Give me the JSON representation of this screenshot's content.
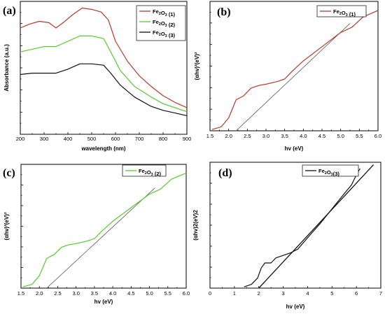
{
  "colors": {
    "red": "#b43a2a",
    "green": "#5ac832",
    "black": "#111111",
    "fit": "#444444"
  },
  "chart_data": [
    {
      "id": "a",
      "type": "line",
      "panel_label": "(a)",
      "xlabel": "wavelength (nm)",
      "ylabel": "Absorbance (a.u.)",
      "xlim": [
        200,
        900
      ],
      "ylim": [
        0,
        1
      ],
      "xticks": [
        200,
        300,
        400,
        500,
        600,
        700,
        800,
        900
      ],
      "yticks_labeled": false,
      "legend_position": "top-right",
      "series": [
        {
          "name": "Fe2O3 (1)",
          "color": "red",
          "points": [
            [
              200,
              0.8
            ],
            [
              240,
              0.83
            ],
            [
              280,
              0.85
            ],
            [
              320,
              0.84
            ],
            [
              350,
              0.8
            ],
            [
              380,
              0.84
            ],
            [
              420,
              0.9
            ],
            [
              460,
              0.95
            ],
            [
              500,
              0.94
            ],
            [
              540,
              0.92
            ],
            [
              570,
              0.86
            ],
            [
              600,
              0.7
            ],
            [
              650,
              0.55
            ],
            [
              700,
              0.44
            ],
            [
              750,
              0.36
            ],
            [
              800,
              0.29
            ],
            [
              850,
              0.24
            ],
            [
              900,
              0.2
            ]
          ]
        },
        {
          "name": "Fe2O3 (2)",
          "color": "green",
          "points": [
            [
              200,
              0.62
            ],
            [
              250,
              0.64
            ],
            [
              300,
              0.66
            ],
            [
              350,
              0.66
            ],
            [
              400,
              0.7
            ],
            [
              450,
              0.74
            ],
            [
              500,
              0.74
            ],
            [
              550,
              0.72
            ],
            [
              580,
              0.62
            ],
            [
              620,
              0.48
            ],
            [
              680,
              0.36
            ],
            [
              750,
              0.28
            ],
            [
              800,
              0.23
            ],
            [
              850,
              0.2
            ],
            [
              900,
              0.17
            ]
          ]
        },
        {
          "name": "Fe2O3 (3)",
          "color": "black",
          "points": [
            [
              200,
              0.45
            ],
            [
              250,
              0.46
            ],
            [
              300,
              0.46
            ],
            [
              350,
              0.46
            ],
            [
              400,
              0.49
            ],
            [
              450,
              0.53
            ],
            [
              500,
              0.53
            ],
            [
              550,
              0.52
            ],
            [
              580,
              0.46
            ],
            [
              620,
              0.37
            ],
            [
              680,
              0.28
            ],
            [
              750,
              0.21
            ],
            [
              800,
              0.18
            ],
            [
              850,
              0.16
            ],
            [
              900,
              0.14
            ]
          ]
        }
      ]
    },
    {
      "id": "b",
      "type": "line",
      "panel_label": "(b)",
      "xlabel": "hv (eV)",
      "ylabel": "(αhv)²(eV)²",
      "xlim": [
        1.5,
        6.0
      ],
      "ylim": [
        0,
        1
      ],
      "xticks": [
        1.5,
        2.0,
        2.5,
        3.0,
        3.5,
        4.0,
        4.5,
        5.0,
        5.5,
        6.0
      ],
      "yticks_labeled": false,
      "legend_position": "top-right",
      "series": [
        {
          "name": "Fe2O3 (1)",
          "color": "red",
          "points": [
            [
              1.55,
              0.01
            ],
            [
              1.8,
              0.03
            ],
            [
              2.0,
              0.1
            ],
            [
              2.1,
              0.17
            ],
            [
              2.2,
              0.24
            ],
            [
              2.4,
              0.27
            ],
            [
              2.6,
              0.33
            ],
            [
              2.8,
              0.35
            ],
            [
              3.0,
              0.36
            ],
            [
              3.3,
              0.38
            ],
            [
              3.5,
              0.4
            ],
            [
              3.7,
              0.46
            ],
            [
              4.0,
              0.54
            ],
            [
              4.5,
              0.65
            ],
            [
              5.0,
              0.76
            ],
            [
              5.3,
              0.8
            ],
            [
              5.6,
              0.88
            ],
            [
              6.0,
              0.93
            ]
          ]
        }
      ],
      "fit_line": {
        "color": "fit",
        "points": [
          [
            2.2,
            0.0
          ],
          [
            5.25,
            0.83
          ]
        ]
      }
    },
    {
      "id": "c",
      "type": "line",
      "panel_label": "(c)",
      "xlabel": "hv (eV)",
      "ylabel": "(αhv)²(eV)²",
      "xlim": [
        1.5,
        6.0
      ],
      "ylim": [
        0,
        1
      ],
      "xticks": [
        1.5,
        2.0,
        2.5,
        3.0,
        3.5,
        4.0,
        4.5,
        5.0,
        5.5,
        6.0
      ],
      "yticks_labeled": false,
      "legend_position": "top-left",
      "series": [
        {
          "name": "Fe2O3 (2)",
          "color": "green",
          "points": [
            [
              1.55,
              0.01
            ],
            [
              1.8,
              0.03
            ],
            [
              2.0,
              0.1
            ],
            [
              2.1,
              0.17
            ],
            [
              2.2,
              0.24
            ],
            [
              2.4,
              0.27
            ],
            [
              2.6,
              0.33
            ],
            [
              2.8,
              0.35
            ],
            [
              3.0,
              0.36
            ],
            [
              3.3,
              0.38
            ],
            [
              3.5,
              0.4
            ],
            [
              3.7,
              0.46
            ],
            [
              4.0,
              0.54
            ],
            [
              4.5,
              0.65
            ],
            [
              5.0,
              0.76
            ],
            [
              5.3,
              0.8
            ],
            [
              5.6,
              0.88
            ],
            [
              6.0,
              0.93
            ]
          ]
        }
      ],
      "fit_line": {
        "color": "fit",
        "points": [
          [
            2.2,
            0.0
          ],
          [
            5.15,
            0.81
          ]
        ]
      }
    },
    {
      "id": "d",
      "type": "line",
      "panel_label": "(d)",
      "xlabel": "hv (eV)",
      "ylabel": "(αhv)2(eV)2",
      "xlim": [
        0,
        7
      ],
      "ylim": [
        0,
        1
      ],
      "xticks": [
        0,
        1,
        2,
        3,
        4,
        5,
        6,
        7
      ],
      "yticks_labeled": false,
      "legend_position": "top-center",
      "series": [
        {
          "name": "Fe2O3(3)",
          "color": "black",
          "points": [
            [
              1.4,
              0.01
            ],
            [
              1.7,
              0.03
            ],
            [
              1.95,
              0.08
            ],
            [
              2.1,
              0.16
            ],
            [
              2.25,
              0.2
            ],
            [
              2.5,
              0.2
            ],
            [
              2.7,
              0.24
            ],
            [
              3.0,
              0.26
            ],
            [
              3.3,
              0.28
            ],
            [
              3.6,
              0.31
            ],
            [
              4.0,
              0.4
            ],
            [
              4.5,
              0.51
            ],
            [
              5.0,
              0.63
            ],
            [
              5.5,
              0.75
            ],
            [
              5.8,
              0.82
            ],
            [
              6.0,
              0.9
            ],
            [
              6.15,
              0.95
            ]
          ]
        }
      ],
      "fit_line": {
        "color": "black",
        "points": [
          [
            2.0,
            0.0
          ],
          [
            6.7,
            0.98
          ]
        ]
      }
    }
  ]
}
